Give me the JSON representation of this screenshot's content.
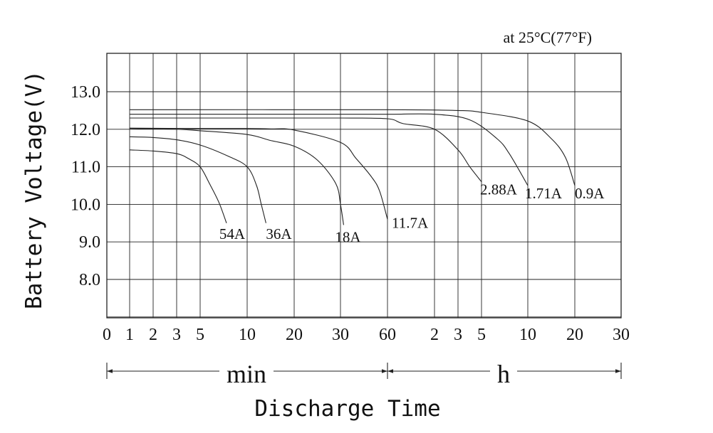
{
  "chart_data": {
    "type": "line",
    "title": "at 25°C(77°F)",
    "ylabel": "Battery Voltage(V)",
    "xlabel": "Discharge Time",
    "ylim": [
      7.0,
      14.0
    ],
    "y_ticks": [
      "13.0",
      "12.0",
      "11.0",
      "10.0",
      "9.0",
      "8.0"
    ],
    "y_tick_values": [
      13.0,
      12.0,
      11.0,
      10.0,
      9.0,
      8.0
    ],
    "x_ticks": [
      "0",
      "1",
      "2",
      "3",
      "5",
      "10",
      "20",
      "30",
      "60",
      "2",
      "3",
      "5",
      "10",
      "20",
      "30"
    ],
    "x_tick_minutes": [
      0,
      1,
      2,
      3,
      5,
      10,
      20,
      30,
      60,
      120,
      180,
      300,
      600,
      1200,
      1800
    ],
    "x_units": {
      "min_label": "min",
      "hour_label": "h"
    },
    "grid": true,
    "series": [
      {
        "name": "54A",
        "label": "54A",
        "points": [
          [
            1,
            11.45
          ],
          [
            2,
            11.42
          ],
          [
            3,
            11.35
          ],
          [
            4,
            11.22
          ],
          [
            5,
            11.0
          ],
          [
            6,
            10.55
          ],
          [
            7,
            10.05
          ],
          [
            7.8,
            9.5
          ]
        ]
      },
      {
        "name": "36A",
        "label": "36A",
        "points": [
          [
            1,
            11.8
          ],
          [
            2,
            11.78
          ],
          [
            3,
            11.72
          ],
          [
            5,
            11.58
          ],
          [
            8,
            11.28
          ],
          [
            10,
            11.0
          ],
          [
            12,
            10.5
          ],
          [
            13,
            10.0
          ],
          [
            14,
            9.5
          ]
        ]
      },
      {
        "name": "18A",
        "label": "18A",
        "points": [
          [
            1,
            12.02
          ],
          [
            3,
            12.0
          ],
          [
            5,
            11.96
          ],
          [
            10,
            11.86
          ],
          [
            15,
            11.7
          ],
          [
            20,
            11.55
          ],
          [
            25,
            11.18
          ],
          [
            29,
            10.55
          ],
          [
            30,
            10.0
          ],
          [
            32,
            9.45
          ]
        ]
      },
      {
        "name": "11.7A",
        "label": "11.7A",
        "points": [
          [
            1,
            12.03
          ],
          [
            5,
            12.02
          ],
          [
            10,
            12.02
          ],
          [
            15,
            12.01
          ],
          [
            20,
            11.98
          ],
          [
            30,
            11.65
          ],
          [
            40,
            11.22
          ],
          [
            50,
            10.72
          ],
          [
            55,
            10.35
          ],
          [
            60,
            9.6
          ]
        ]
      },
      {
        "name": "2.88A",
        "label": "2.88A",
        "points": [
          [
            1,
            12.3
          ],
          [
            10,
            12.3
          ],
          [
            30,
            12.3
          ],
          [
            60,
            12.28
          ],
          [
            80,
            12.15
          ],
          [
            120,
            12.0
          ],
          [
            180,
            11.45
          ],
          [
            240,
            11.0
          ],
          [
            300,
            10.6
          ]
        ]
      },
      {
        "name": "1.71A",
        "label": "1.71A",
        "points": [
          [
            1,
            12.4
          ],
          [
            30,
            12.4
          ],
          [
            60,
            12.4
          ],
          [
            120,
            12.4
          ],
          [
            240,
            12.25
          ],
          [
            400,
            11.75
          ],
          [
            480,
            11.35
          ],
          [
            600,
            10.5
          ]
        ]
      },
      {
        "name": "0.9A",
        "label": "0.9A",
        "points": [
          [
            1,
            12.52
          ],
          [
            60,
            12.52
          ],
          [
            180,
            12.5
          ],
          [
            300,
            12.45
          ],
          [
            600,
            12.22
          ],
          [
            900,
            11.75
          ],
          [
            1080,
            11.25
          ],
          [
            1200,
            10.5
          ]
        ]
      }
    ]
  }
}
